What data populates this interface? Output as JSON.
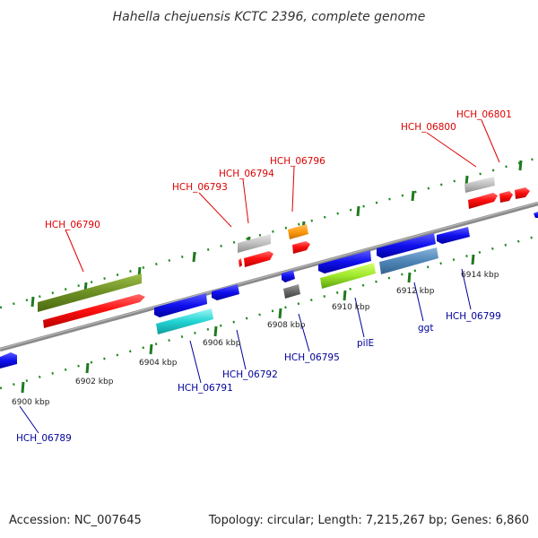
{
  "title": "Hahella chejuensis KCTC 2396, complete genome",
  "footer": {
    "accession": "Accession: NC_007645",
    "stats": "Topology: circular; Length: 7,215,267 bp; Genes: 6,860"
  },
  "colors": {
    "forward_label": "#dd0000",
    "reverse_label": "#000099",
    "tick_green": "#228822",
    "backbone": "#888888"
  },
  "scale_labels": [
    "6900 kbp",
    "6902 kbp",
    "6904 kbp",
    "6906 kbp",
    "6908 kbp",
    "6910 kbp",
    "6912 kbp",
    "6914 kbp"
  ],
  "forward_labels": [
    "HCH_06790",
    "HCH_06793",
    "HCH_06794",
    "HCH_06796",
    "HCH_06800",
    "HCH_06801"
  ],
  "reverse_labels": [
    "HCH_06789",
    "HCH_06791",
    "HCH_06792",
    "HCH_06795",
    "pilE",
    "ggt",
    "HCH_06799"
  ]
}
